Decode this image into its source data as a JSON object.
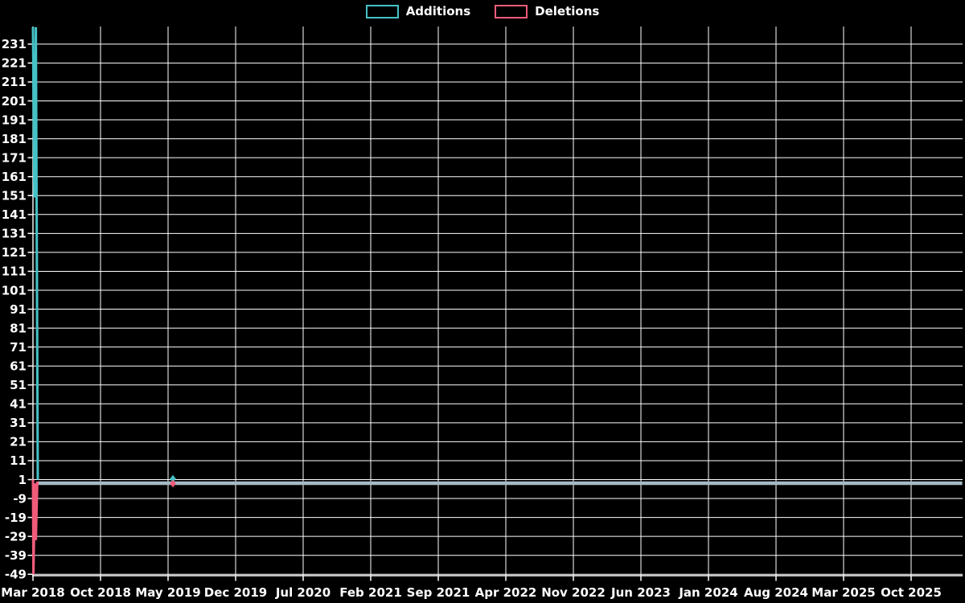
{
  "page": {
    "background_color": "#000000",
    "text_color": "#ffffff"
  },
  "legend": {
    "items": [
      {
        "label": "Additions",
        "color": "#45c2c6"
      },
      {
        "label": "Deletions",
        "color": "#f05b7a"
      }
    ]
  },
  "chart_data": {
    "type": "line",
    "title": "",
    "xlabel": "",
    "ylabel": "",
    "background_color": "#000000",
    "grid": {
      "shown": true,
      "color": "#ffffff"
    },
    "x_axis": {
      "tick_labels": [
        "Mar 2018",
        "Oct 2018",
        "May 2019",
        "Dec 2019",
        "Jul 2020",
        "Feb 2021",
        "Sep 2021",
        "Apr 2022",
        "Nov 2022",
        "Jun 2023",
        "Jan 2024",
        "Aug 2024",
        "Mar 2025",
        "Oct 2025"
      ],
      "months_per_tick": 7,
      "origin_label": "Mar 2018"
    },
    "y_axis": {
      "tick_values": [
        231,
        221,
        211,
        201,
        191,
        181,
        171,
        161,
        151,
        141,
        131,
        121,
        111,
        101,
        91,
        81,
        71,
        61,
        51,
        41,
        31,
        21,
        11,
        1,
        -9,
        -19,
        -29,
        -39,
        -49
      ],
      "visible_range": [
        -50,
        241
      ]
    },
    "series": [
      {
        "name": "Additions",
        "color": "#45c2c6",
        "points_month_value": [
          [
            0,
            240
          ],
          [
            0.15,
            150
          ],
          [
            0.3,
            240
          ],
          [
            0.5,
            1
          ]
        ],
        "description": "spikes to ~240 at Mar 2018 then drops to ~1 and stays flat"
      },
      {
        "name": "Deletions",
        "color": "#f05b7a",
        "points_month_value": [
          [
            0,
            1
          ],
          [
            0.05,
            -49
          ],
          [
            0.2,
            -1
          ],
          [
            0.3,
            -31
          ],
          [
            0.45,
            0
          ]
        ],
        "description": "dips to ~-49 at Mar 2018 then returns to ~0 and stays flat"
      }
    ],
    "flat_line": {
      "color": "#a6bac5",
      "value": 0,
      "from_month": 0.5,
      "to_month": 96.3,
      "description": "both series overlap near zero across remainder of timeline"
    },
    "isolated_markers": [
      {
        "series": "Additions",
        "month": 14.5,
        "value": 1,
        "shape": "diamond",
        "color": "#45c2c6"
      },
      {
        "series": "Deletions",
        "month": 14.5,
        "value": 0,
        "shape": "diamond",
        "color": "#f05b7a"
      }
    ]
  }
}
